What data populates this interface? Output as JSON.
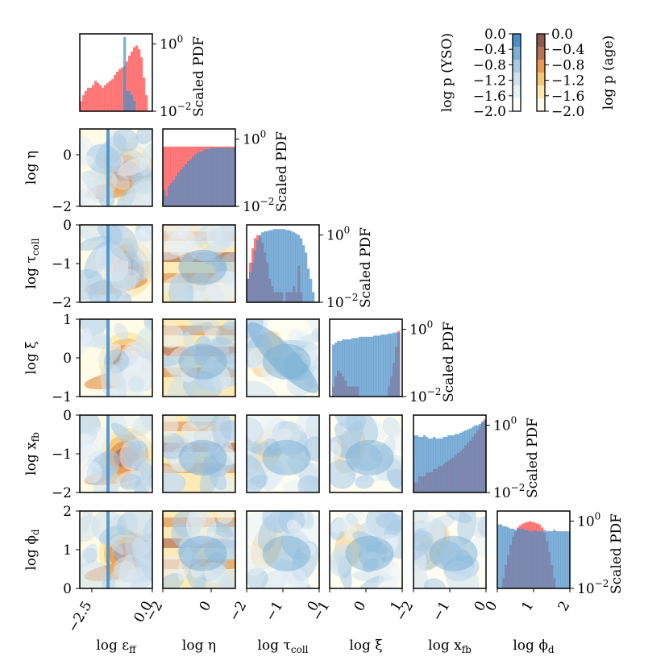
{
  "chart_data": {
    "type": "corner",
    "parameters": [
      {
        "key": "eff",
        "label": "log ε",
        "sub": "ff",
        "range": [
          -3.0,
          0.0
        ],
        "ticks": [
          -2.5,
          0.0
        ]
      },
      {
        "key": "eta",
        "label": "log η",
        "sub": "",
        "range": [
          -2,
          1
        ],
        "ticks": [
          -2,
          0
        ]
      },
      {
        "key": "tau",
        "label": "log τ",
        "sub": "coll",
        "range": [
          -2,
          0
        ],
        "ticks": [
          -2,
          -1,
          0
        ]
      },
      {
        "key": "xi",
        "label": "log ξ",
        "sub": "",
        "range": [
          -1,
          1
        ],
        "ticks": [
          -1,
          0,
          1
        ]
      },
      {
        "key": "xfb",
        "label": "log x",
        "sub": "fb",
        "range": [
          -2,
          0
        ],
        "ticks": [
          -2,
          -1,
          0
        ]
      },
      {
        "key": "phid",
        "label": "log ϕ",
        "sub": "d",
        "range": [
          0,
          2
        ],
        "ticks": [
          0,
          1,
          2
        ]
      }
    ],
    "tick_labels": {
      "eff": [
        "−2.5",
        "0.0"
      ],
      "eta": [
        "−2",
        "0"
      ],
      "tau": [
        "−2",
        "−1",
        "0"
      ],
      "xi": [
        "−1",
        "0",
        "1"
      ],
      "xfb": [
        "−2",
        "−1",
        "0"
      ],
      "phid": [
        "0",
        "1",
        "2"
      ]
    },
    "diag_ylabel": "Scaled PDF",
    "diag_ylim": [
      0.01,
      2
    ],
    "diag_yticks": [
      "10",
      "10"
    ],
    "diag_ytick_exp": [
      "0",
      "−2"
    ],
    "series": [
      {
        "name": "YSO",
        "color": "#4a8fc6"
      },
      {
        "name": "age",
        "color": "#ff4d4d"
      }
    ],
    "histograms": {
      "eff": {
        "YSO": [
          0.01,
          0.01,
          0.01,
          0.01,
          0.01,
          0.01,
          0.01,
          0.01,
          0.01,
          0.01,
          0.01,
          0.01,
          0.01,
          0.01,
          0.01,
          0.01,
          0.01,
          0.01,
          1.6,
          0.04,
          0.04,
          0.03,
          0.02,
          0.01,
          0.01,
          0.01,
          0.01,
          0.01,
          0.01,
          0.01
        ],
        "age": [
          0.02,
          0.03,
          0.04,
          0.05,
          0.05,
          0.06,
          0.08,
          0.07,
          0.06,
          0.05,
          0.06,
          0.07,
          0.08,
          0.09,
          0.12,
          0.15,
          0.18,
          0.2,
          0.22,
          0.3,
          0.45,
          0.6,
          0.8,
          0.9,
          0.7,
          0.4,
          0.1,
          0.03,
          0.01,
          0.01
        ]
      },
      "eta": {
        "YSO": [
          0.03,
          0.02,
          0.04,
          0.05,
          0.06,
          0.08,
          0.1,
          0.12,
          0.15,
          0.18,
          0.22,
          0.25,
          0.3,
          0.35,
          0.4,
          0.42,
          0.45,
          0.5,
          0.5,
          0.52,
          0.55,
          0.55,
          0.55,
          0.55,
          0.55,
          0.55,
          0.55,
          0.55,
          0.55,
          0.55
        ],
        "age": [
          0.6,
          0.6,
          0.6,
          0.6,
          0.6,
          0.6,
          0.6,
          0.6,
          0.6,
          0.6,
          0.6,
          0.6,
          0.6,
          0.6,
          0.6,
          0.6,
          0.6,
          0.6,
          0.6,
          0.6,
          0.6,
          0.6,
          0.6,
          0.6,
          0.6,
          0.6,
          0.6,
          0.6,
          0.6,
          0.6
        ]
      },
      "tau": {
        "YSO": [
          0.05,
          0.08,
          0.15,
          0.35,
          0.7,
          1.0,
          1.2,
          1.3,
          1.3,
          1.4,
          1.4,
          1.5,
          1.5,
          1.5,
          1.5,
          1.5,
          1.4,
          1.4,
          1.3,
          1.2,
          1.1,
          1.0,
          0.8,
          0.5,
          0.3,
          0.1,
          0.05,
          0.02,
          0.01,
          0.01
        ],
        "age": [
          0.05,
          0.15,
          0.4,
          0.8,
          1.0,
          0.9,
          0.6,
          0.3,
          0.15,
          0.05,
          0.03,
          0.02,
          0.02,
          0.02,
          0.02,
          0.01,
          0.02,
          0.02,
          0.02,
          0.03,
          0.02,
          0.12,
          0.02,
          0.01,
          0.01,
          0.01,
          0.01,
          0.01,
          0.01,
          0.01
        ]
      },
      "xi": {
        "YSO": [
          0.01,
          0.35,
          0.4,
          0.45,
          0.45,
          0.5,
          0.5,
          0.5,
          0.5,
          0.55,
          0.55,
          0.55,
          0.6,
          0.6,
          0.6,
          0.6,
          0.6,
          0.6,
          0.65,
          0.65,
          0.65,
          0.7,
          0.7,
          0.7,
          0.75,
          0.75,
          0.8,
          0.8,
          0.8,
          0.01
        ],
        "age": [
          0.01,
          0.02,
          0.04,
          0.06,
          0.05,
          0.04,
          0.03,
          0.02,
          0.02,
          0.02,
          0.02,
          0.02,
          0.01,
          0.01,
          0.01,
          0.01,
          0.01,
          0.01,
          0.01,
          0.01,
          0.01,
          0.01,
          0.01,
          0.01,
          0.02,
          0.04,
          0.1,
          0.3,
          0.9,
          0.01
        ]
      },
      "xfb": {
        "YSO": [
          0.5,
          0.5,
          0.45,
          0.45,
          0.5,
          0.45,
          0.4,
          0.4,
          0.45,
          0.4,
          0.4,
          0.4,
          0.45,
          0.45,
          0.5,
          0.5,
          0.5,
          0.55,
          0.55,
          0.6,
          0.65,
          0.7,
          0.75,
          0.8,
          0.9,
          1.0,
          1.0,
          1.1,
          1.3,
          1.4
        ],
        "age": [
          0.02,
          0.02,
          0.03,
          0.03,
          0.03,
          0.04,
          0.04,
          0.04,
          0.05,
          0.05,
          0.06,
          0.06,
          0.07,
          0.08,
          0.09,
          0.1,
          0.11,
          0.13,
          0.15,
          0.17,
          0.2,
          0.25,
          0.3,
          0.35,
          0.45,
          0.55,
          0.7,
          0.9,
          1.2,
          1.5
        ]
      },
      "phid": {
        "YSO": [
          0.8,
          0.8,
          0.7,
          0.7,
          0.65,
          0.6,
          0.6,
          0.55,
          0.6,
          0.6,
          0.6,
          0.55,
          0.55,
          0.5,
          0.5,
          0.55,
          0.5,
          0.5,
          0.5,
          0.55,
          0.5,
          0.5,
          0.5,
          0.55,
          0.5,
          0.5,
          0.5,
          0.5,
          0.5,
          0.5
        ],
        "age": [
          0.01,
          0.01,
          0.02,
          0.05,
          0.1,
          0.2,
          0.35,
          0.5,
          0.65,
          0.75,
          0.85,
          0.9,
          0.95,
          1.0,
          0.95,
          0.9,
          0.85,
          0.8,
          0.65,
          0.45,
          0.25,
          0.12,
          0.05,
          0.02,
          0.01,
          0.01,
          0.01,
          0.01,
          0.01,
          0.01
        ]
      }
    },
    "colorbars": [
      {
        "label": "log p (YSO)",
        "ticks": [
          "0.0",
          "−0.4",
          "−0.8",
          "−1.2",
          "−1.6",
          "−2.0"
        ],
        "colors": [
          "#4a8fc6",
          "#7ab0d6",
          "#a8cbe5",
          "#cfe1ef",
          "#e8f1f8",
          "#ffffff"
        ]
      },
      {
        "label": "log p (age)",
        "ticks": [
          "0.0",
          "−0.4",
          "−0.8",
          "−1.2",
          "−1.6",
          "−2.0"
        ],
        "colors": [
          "#8c5a4c",
          "#b77356",
          "#e69a56",
          "#f6c778",
          "#fde8ad",
          "#fffbe6"
        ]
      }
    ]
  }
}
